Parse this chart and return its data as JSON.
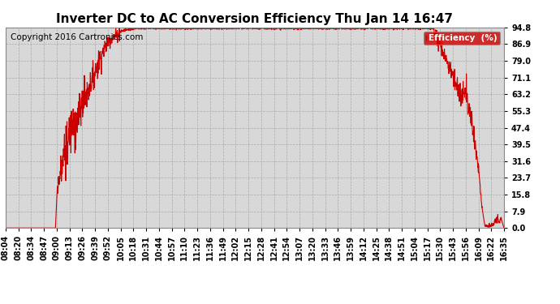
{
  "title": "Inverter DC to AC Conversion Efficiency Thu Jan 14 16:47",
  "copyright": "Copyright 2016 Cartronics.com",
  "legend_label": "Efficiency  (%)",
  "legend_bg": "#cc0000",
  "legend_text_color": "#ffffff",
  "line_color": "#cc0000",
  "background_color": "#ffffff",
  "plot_bg_color": "#d8d8d8",
  "grid_color": "#aaaaaa",
  "yticks": [
    0.0,
    7.9,
    15.8,
    23.7,
    31.6,
    39.5,
    47.4,
    55.3,
    63.2,
    71.1,
    79.0,
    86.9,
    94.8
  ],
  "ylim": [
    0.0,
    94.8
  ],
  "xtick_labels": [
    "08:04",
    "08:20",
    "08:34",
    "08:47",
    "09:00",
    "09:13",
    "09:26",
    "09:39",
    "09:52",
    "10:05",
    "10:18",
    "10:31",
    "10:44",
    "10:57",
    "11:10",
    "11:23",
    "11:36",
    "11:49",
    "12:02",
    "12:15",
    "12:28",
    "12:41",
    "12:54",
    "13:07",
    "13:20",
    "13:33",
    "13:46",
    "13:59",
    "14:12",
    "14:25",
    "14:38",
    "14:51",
    "15:04",
    "15:17",
    "15:30",
    "15:43",
    "15:56",
    "16:09",
    "16:22",
    "16:35"
  ],
  "title_fontsize": 11,
  "axis_fontsize": 7,
  "copyright_fontsize": 7.5
}
